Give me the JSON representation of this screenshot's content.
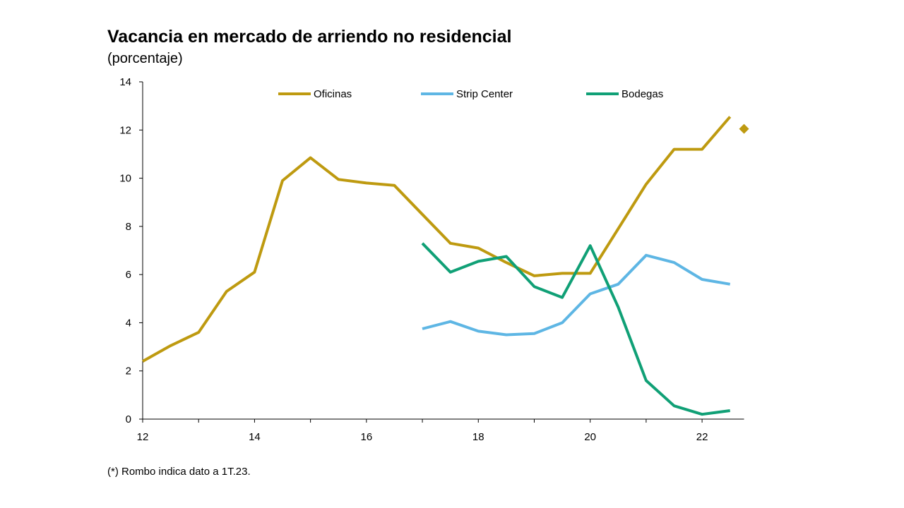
{
  "chart_data": {
    "type": "line",
    "title": "Vacancia en mercado de arriendo no residencial",
    "subtitle": "(porcentaje)",
    "footnote": "(*) Rombo indica dato a 1T.23.",
    "xlim": [
      12,
      22.75
    ],
    "ylim": [
      0,
      14
    ],
    "x_ticks": [
      12,
      14,
      16,
      18,
      20,
      22
    ],
    "y_ticks": [
      0,
      2,
      4,
      6,
      8,
      10,
      12,
      14
    ],
    "grid": false,
    "legend_position": "top",
    "series": [
      {
        "name": "Oficinas",
        "color": "#BE9A10",
        "points": [
          [
            12,
            2.4
          ],
          [
            12.5,
            3.05
          ],
          [
            13,
            3.6
          ],
          [
            13.5,
            5.3
          ],
          [
            14,
            6.1
          ],
          [
            14.5,
            9.9
          ],
          [
            15,
            10.85
          ],
          [
            15.5,
            9.95
          ],
          [
            16,
            9.8
          ],
          [
            16.5,
            9.7
          ],
          [
            17,
            8.5
          ],
          [
            17.5,
            7.3
          ],
          [
            18,
            7.1
          ],
          [
            18.5,
            6.5
          ],
          [
            19,
            5.95
          ],
          [
            19.5,
            6.05
          ],
          [
            20,
            6.05
          ],
          [
            20.5,
            7.9
          ],
          [
            21,
            9.75
          ],
          [
            21.5,
            11.2
          ],
          [
            22,
            11.2
          ],
          [
            22.5,
            12.55
          ]
        ],
        "marker": {
          "shape": "diamond",
          "point": [
            22.75,
            12.05
          ]
        }
      },
      {
        "name": "Strip Center",
        "color": "#5EB6E4",
        "points": [
          [
            17,
            3.75
          ],
          [
            17.5,
            4.05
          ],
          [
            18,
            3.65
          ],
          [
            18.5,
            3.5
          ],
          [
            19,
            3.55
          ],
          [
            19.5,
            4.0
          ],
          [
            20,
            5.2
          ],
          [
            20.5,
            5.6
          ],
          [
            21,
            6.8
          ],
          [
            21.5,
            6.5
          ],
          [
            22,
            5.8
          ],
          [
            22.5,
            5.6
          ]
        ]
      },
      {
        "name": "Bodegas",
        "color": "#10A076",
        "points": [
          [
            17,
            7.3
          ],
          [
            17.5,
            6.1
          ],
          [
            18,
            6.55
          ],
          [
            18.5,
            6.75
          ],
          [
            19,
            5.5
          ],
          [
            19.5,
            5.05
          ],
          [
            20,
            7.2
          ],
          [
            20.5,
            4.65
          ],
          [
            21,
            1.6
          ],
          [
            21.5,
            0.55
          ],
          [
            22,
            0.2
          ],
          [
            22.5,
            0.35
          ]
        ]
      }
    ]
  }
}
